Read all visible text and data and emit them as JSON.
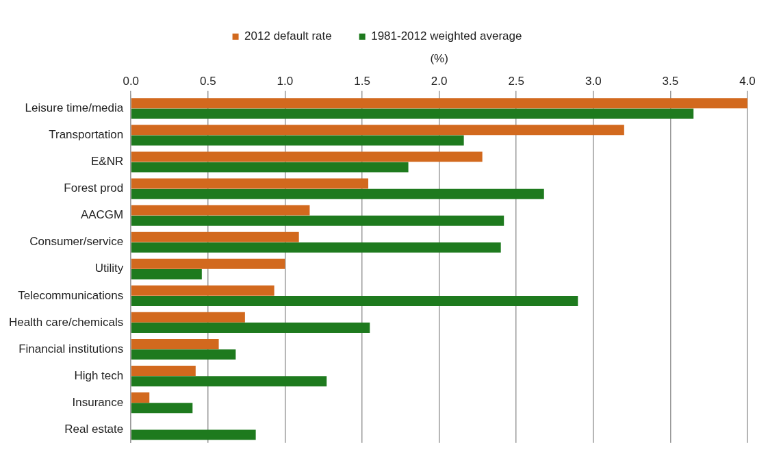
{
  "chart_data": {
    "type": "bar",
    "orientation": "horizontal",
    "xlabel": "(%)",
    "categories": [
      "Leisure time/media",
      "Transportation",
      "E&NR",
      "Forest prod",
      "AACGM",
      "Consumer/service",
      "Utility",
      "Telecommunications",
      "Health care/chemicals",
      "Financial institutions",
      "High tech",
      "Insurance",
      "Real estate"
    ],
    "series": [
      {
        "name": "2012 default rate",
        "color": "#d2691e",
        "values": [
          4.0,
          3.2,
          2.28,
          1.54,
          1.16,
          1.09,
          1.0,
          0.93,
          0.74,
          0.57,
          0.42,
          0.12,
          0
        ]
      },
      {
        "name": "1981-2012 weighted average",
        "color": "#1e7a1e",
        "values": [
          3.65,
          2.16,
          1.8,
          2.68,
          2.42,
          2.4,
          0.46,
          2.9,
          1.55,
          0.68,
          1.27,
          0.4,
          0.81
        ]
      }
    ],
    "xlim": [
      0,
      4.0
    ],
    "xticks": [
      {
        "value": 0,
        "label": "0.0"
      },
      {
        "value": 0.5,
        "label": "0.5"
      },
      {
        "value": 1,
        "label": "1.0"
      },
      {
        "value": 1.5,
        "label": "1.5"
      },
      {
        "value": 2,
        "label": "2.0"
      },
      {
        "value": 2.5,
        "label": "2.5"
      },
      {
        "value": 3,
        "label": "3.0"
      },
      {
        "value": 3.5,
        "label": "3.5"
      },
      {
        "value": 4,
        "label": "4.0"
      }
    ],
    "grid": "x",
    "legend": "top"
  }
}
